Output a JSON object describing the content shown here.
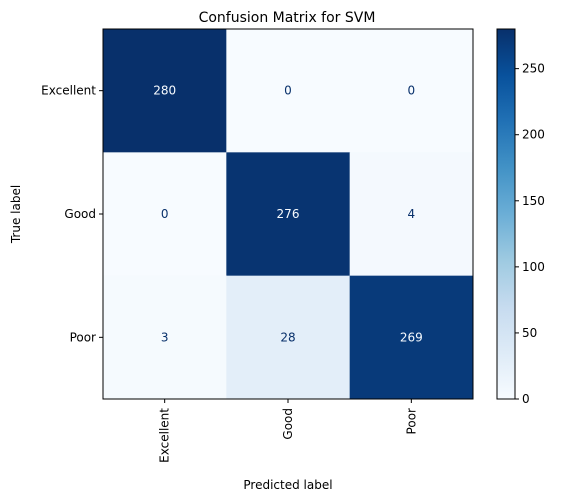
{
  "chart_data": {
    "type": "heatmap",
    "title": "Confusion Matrix for SVM",
    "xlabel": "Predicted label",
    "ylabel": "True label",
    "x_categories": [
      "Excellent",
      "Good",
      "Poor"
    ],
    "y_categories": [
      "Excellent",
      "Good",
      "Poor"
    ],
    "values": [
      [
        280,
        0,
        0
      ],
      [
        0,
        276,
        4
      ],
      [
        3,
        28,
        269
      ]
    ],
    "colormap": "Blues",
    "color_low": "#f7fbff",
    "color_high": "#08306b",
    "vmin": 0,
    "vmax": 280,
    "colorbar_ticks": [
      0,
      50,
      100,
      150,
      200,
      250
    ],
    "grid": false
  }
}
